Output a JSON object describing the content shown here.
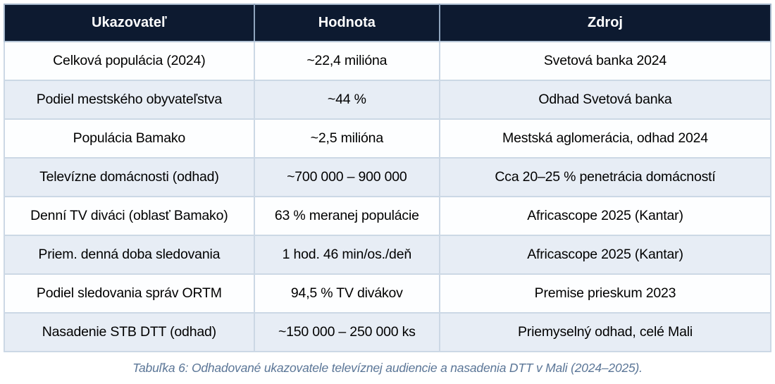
{
  "table": {
    "columns": [
      "Ukazovateľ",
      "Hodnota",
      "Zdroj"
    ],
    "rows": [
      [
        "Celková populácia (2024)",
        "~22,4 milióna",
        "Svetová banka 2024"
      ],
      [
        "Podiel mestského obyvateľstva",
        "~44 %",
        "Odhad Svetová banka"
      ],
      [
        "Populácia Bamako",
        "~2,5 milióna",
        "Mestská aglomerácia, odhad 2024"
      ],
      [
        "Televízne domácnosti (odhad)",
        "~700 000 – 900 000",
        "Cca 20–25 % penetrácia domácností"
      ],
      [
        "Denní TV diváci (oblasť Bamako)",
        "63 % meranej populácie",
        "Africascope 2025 (Kantar)"
      ],
      [
        "Priem. denná doba sledovania",
        "1 hod. 46 min/os./deň",
        "Africascope 2025 (Kantar)"
      ],
      [
        "Podiel sledovania správ ORTM",
        "94,5 % TV divákov",
        "Premise prieskum 2023"
      ],
      [
        "Nasadenie STB DTT (odhad)",
        "~150 000 – 250 000 ks",
        "Priemyselný odhad, celé Mali"
      ]
    ]
  },
  "caption": "Tabuľka 6: Odhadované ukazovatele televíznej audiencie a nasadenia DTT v Mali (2024–2025).",
  "colors": {
    "header_bg": "#0d1a30",
    "header_text": "#ffffff",
    "row_bg": "#fdfeff",
    "row_alt_bg": "#e7edf5",
    "outer_border": "#a6b7cb",
    "cell_border": "#ccd8e5",
    "caption_text": "#5b7697"
  }
}
